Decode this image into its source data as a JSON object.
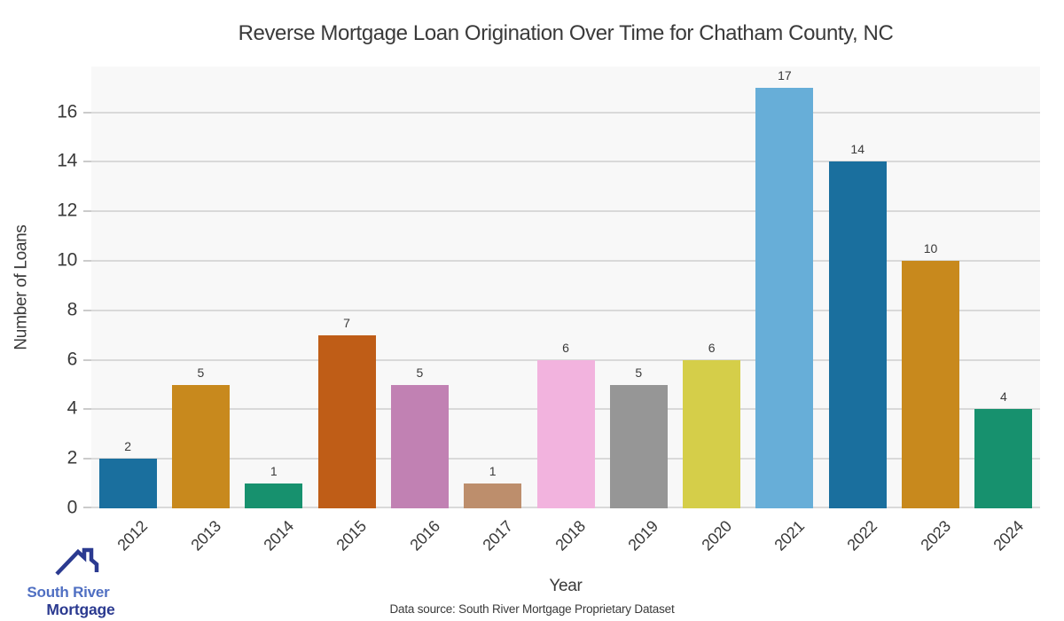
{
  "chart_data": {
    "type": "bar",
    "title": "Reverse Mortgage Loan Origination Over Time for Chatham County, NC",
    "xlabel": "Year",
    "ylabel": "Number of Loans",
    "categories": [
      "2012",
      "2013",
      "2014",
      "2015",
      "2016",
      "2017",
      "2018",
      "2019",
      "2020",
      "2021",
      "2022",
      "2023",
      "2024"
    ],
    "values": [
      2,
      5,
      1,
      7,
      5,
      1,
      6,
      5,
      6,
      17,
      14,
      10,
      4
    ],
    "bar_labels": [
      "2",
      "5",
      "1",
      "7",
      "5",
      "1",
      "6",
      "5",
      "6",
      "17",
      "14",
      "10",
      "4"
    ],
    "bar_colors": [
      "#1a6f9e",
      "#c8891d",
      "#17916e",
      "#bf5d17",
      "#c181b3",
      "#bd8e6c",
      "#f2b3de",
      "#969696",
      "#d5ce49",
      "#67aed8",
      "#1a6f9e",
      "#c8891d",
      "#17916e"
    ],
    "ylim": [
      0,
      17.85
    ],
    "yticks": [
      0,
      2,
      4,
      6,
      8,
      10,
      12,
      14,
      16
    ],
    "grid": true,
    "legend": null,
    "plot_bg": "#f8f8f8",
    "grid_color": "#d9d9d9",
    "text_color": "#3a3a3a"
  },
  "footer": {
    "source": "Data source: South River Mortgage Proprietary Dataset"
  },
  "logo": {
    "line1": "South River",
    "line2": "Mortgage",
    "line1_color": "#4f6fc2",
    "line2_color": "#2b3a90",
    "roof_color": "#2b3a90"
  }
}
